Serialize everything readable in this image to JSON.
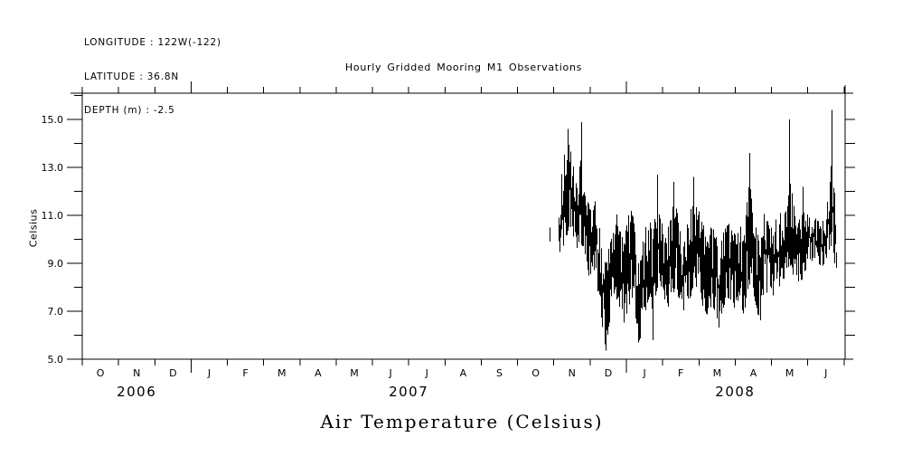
{
  "meta_block": {
    "longitude": "LONGITUDE : 122W(-122)",
    "latitude": "LATITUDE : 36.8N",
    "depth": "DEPTH (m) : -2.5"
  },
  "title": "Hourly Gridded Mooring M1 Observations",
  "bottom_title": "Air Temperature (Celsius)",
  "colors": {
    "foreground": "#000000",
    "background": "#ffffff"
  },
  "chart_data": {
    "type": "line",
    "title": "Hourly Gridded Mooring M1 Observations",
    "xlabel": "Air Temperature (Celsius)",
    "ylabel": "Celsius",
    "grid": false,
    "legend": "none",
    "x_axis": {
      "unit": "months since 2006-10-01",
      "range": [
        0,
        21.03
      ],
      "month_letters": [
        "O",
        "N",
        "D",
        "J",
        "F",
        "M",
        "A",
        "M",
        "J",
        "J",
        "A",
        "S",
        "O",
        "N",
        "D",
        "J",
        "F",
        "M",
        "A",
        "M",
        "J"
      ],
      "year_boundary_ticks": [
        3,
        15
      ],
      "year_labels": [
        {
          "text": "2006",
          "m": 1.5
        },
        {
          "text": "2007",
          "m": 9.0
        },
        {
          "text": "2008",
          "m": 18.0
        }
      ]
    },
    "y_axis": {
      "range": [
        5.0,
        16.1
      ],
      "major_ticks": [
        5.0,
        7.0,
        9.0,
        11.0,
        13.0,
        15.0
      ],
      "major_tick_labels": [
        "5.0",
        "7.0",
        "9.0",
        "11.0",
        "13.0",
        "15.0"
      ],
      "minor_ticks": [
        6.0,
        8.0,
        10.0,
        12.0,
        14.0,
        16.0
      ],
      "right_ticks": [
        6,
        7,
        8,
        9,
        10,
        11,
        12,
        13,
        14,
        15
      ]
    },
    "series": [
      {
        "name": "air_temperature_celsius",
        "coverage": "data visible from late Oct 2007 through late Jun 2008; no data Oct 2006 - mid Oct 2007",
        "envelope_note": "hourly noisy trace summarized as [months_since_2006_10_01, min_C, max_C]",
        "envelope": [
          [
            13.12,
            9.5,
            10.6
          ],
          [
            13.22,
            9.3,
            13.3
          ],
          [
            13.32,
            10.0,
            14.0
          ],
          [
            13.42,
            10.4,
            14.0
          ],
          [
            13.52,
            10.0,
            13.2
          ],
          [
            13.62,
            9.6,
            12.2
          ],
          [
            13.75,
            9.8,
            13.5
          ],
          [
            13.85,
            9.0,
            12.0
          ],
          [
            13.95,
            8.5,
            11.5
          ],
          [
            14.05,
            8.0,
            11.0
          ],
          [
            14.15,
            8.2,
            11.8
          ],
          [
            14.25,
            7.5,
            10.5
          ],
          [
            14.35,
            6.0,
            9.5
          ],
          [
            14.42,
            5.3,
            9.0
          ],
          [
            14.52,
            6.5,
            9.8
          ],
          [
            14.62,
            7.0,
            10.2
          ],
          [
            14.72,
            7.5,
            11.3
          ],
          [
            14.82,
            7.0,
            10.5
          ],
          [
            14.92,
            6.5,
            10.0
          ],
          [
            15.02,
            7.0,
            10.8
          ],
          [
            15.12,
            7.5,
            11.5
          ],
          [
            15.22,
            7.0,
            10.5
          ],
          [
            15.32,
            5.7,
            9.5
          ],
          [
            15.42,
            6.0,
            9.8
          ],
          [
            15.52,
            7.0,
            10.5
          ],
          [
            15.62,
            7.5,
            11.0
          ],
          [
            15.72,
            5.8,
            10.0
          ],
          [
            15.84,
            8.0,
            12.0
          ],
          [
            15.94,
            7.5,
            11.0
          ],
          [
            16.04,
            6.5,
            10.0
          ],
          [
            16.14,
            7.0,
            10.5
          ],
          [
            16.24,
            7.5,
            11.8
          ],
          [
            16.34,
            8.0,
            11.5
          ],
          [
            16.44,
            7.5,
            10.8
          ],
          [
            16.54,
            6.5,
            10.0
          ],
          [
            16.64,
            7.0,
            10.5
          ],
          [
            16.74,
            7.5,
            11.0
          ],
          [
            16.84,
            8.0,
            12.0
          ],
          [
            16.94,
            8.0,
            11.5
          ],
          [
            17.04,
            7.5,
            11.0
          ],
          [
            17.14,
            7.0,
            10.5
          ],
          [
            17.24,
            6.8,
            10.2
          ],
          [
            17.34,
            7.2,
            10.6
          ],
          [
            17.44,
            7.0,
            10.3
          ],
          [
            17.54,
            6.3,
            9.8
          ],
          [
            17.64,
            7.0,
            10.2
          ],
          [
            17.74,
            7.3,
            10.6
          ],
          [
            17.84,
            7.5,
            10.8
          ],
          [
            17.94,
            7.2,
            10.4
          ],
          [
            18.04,
            7.0,
            10.2
          ],
          [
            18.14,
            7.3,
            10.8
          ],
          [
            18.21,
            6.7,
            10.0
          ],
          [
            18.31,
            7.5,
            11.5
          ],
          [
            18.39,
            8.0,
            12.5
          ],
          [
            18.49,
            7.8,
            11.0
          ],
          [
            18.59,
            7.0,
            10.3
          ],
          [
            18.69,
            6.4,
            9.8
          ],
          [
            18.79,
            7.5,
            11.1
          ],
          [
            18.89,
            7.8,
            10.8
          ],
          [
            18.99,
            7.5,
            10.5
          ],
          [
            19.09,
            7.8,
            10.8
          ],
          [
            19.19,
            8.0,
            11.0
          ],
          [
            19.29,
            8.2,
            11.2
          ],
          [
            19.39,
            8.5,
            11.5
          ],
          [
            19.49,
            9.0,
            13.0
          ],
          [
            19.59,
            8.5,
            11.5
          ],
          [
            19.69,
            8.3,
            11.0
          ],
          [
            19.79,
            8.0,
            10.8
          ],
          [
            19.86,
            8.5,
            11.5
          ],
          [
            19.96,
            8.8,
            11.0
          ],
          [
            20.06,
            9.0,
            11.2
          ],
          [
            20.16,
            9.2,
            11.0
          ],
          [
            20.26,
            9.0,
            10.8
          ],
          [
            20.36,
            8.8,
            10.6
          ],
          [
            20.46,
            9.0,
            11.0
          ],
          [
            20.56,
            9.5,
            12.0
          ],
          [
            20.66,
            9.8,
            13.5
          ],
          [
            20.73,
            9.0,
            12.0
          ],
          [
            20.78,
            8.7,
            9.5
          ]
        ],
        "extreme_strokes_note": "isolated spikes/dips as [months, value_a, value_b]",
        "extreme_strokes": [
          [
            12.88,
            9.9,
            10.5
          ],
          [
            13.38,
            10.5,
            14.6
          ],
          [
            13.75,
            10.0,
            14.9
          ],
          [
            14.42,
            9.0,
            5.35
          ],
          [
            15.32,
            9.0,
            5.7
          ],
          [
            15.72,
            9.5,
            5.8
          ],
          [
            15.84,
            8.8,
            12.7
          ],
          [
            16.29,
            8.5,
            12.4
          ],
          [
            16.84,
            8.6,
            12.6
          ],
          [
            18.39,
            8.2,
            13.6
          ],
          [
            19.49,
            9.2,
            15.0
          ],
          [
            19.86,
            9.0,
            12.2
          ],
          [
            20.66,
            10.3,
            15.4
          ]
        ]
      }
    ]
  }
}
